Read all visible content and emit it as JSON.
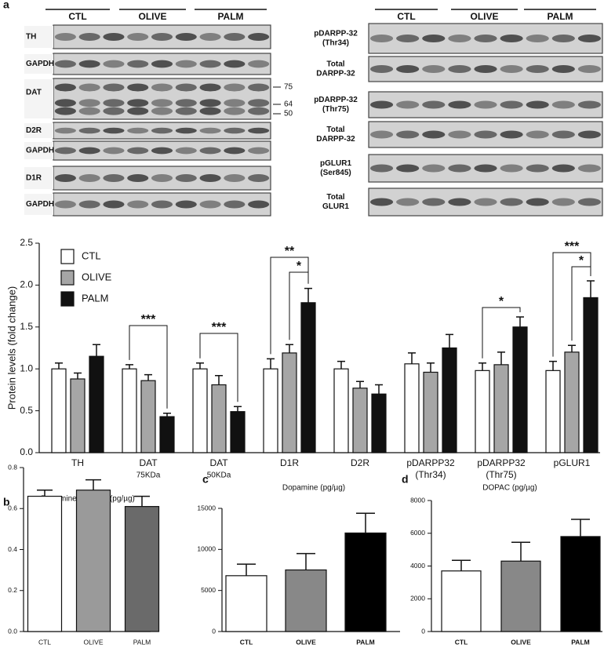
{
  "panel_labels": [
    "a",
    "b",
    "c",
    "d"
  ],
  "blots": {
    "left": {
      "groups": [
        "CTL",
        "OLIVE",
        "PALM"
      ],
      "rows": [
        "TH",
        "GAPDH",
        "DAT",
        "D2R",
        "GAPDH",
        "D1R",
        "GAPDH"
      ],
      "markers": [
        "75",
        "64",
        "50"
      ]
    },
    "right": {
      "groups": [
        "CTL",
        "OLIVE",
        "PALM"
      ],
      "rows": [
        [
          "pDARPP-32",
          "(Thr34)"
        ],
        [
          "Total",
          "DARPP-32"
        ],
        [
          "pDARPP-32",
          "(Thr75)"
        ],
        [
          "Total",
          "DARPP-32"
        ],
        [
          "pGLUR1",
          "(Ser845)"
        ],
        [
          "Total",
          "GLUR1"
        ]
      ]
    }
  },
  "chart_data": [
    {
      "type": "bar",
      "y_label": "Protein levels (fold change)",
      "categories": [
        "TH",
        "DAT",
        "DAT",
        "D1R",
        "D2R",
        "pDARPP32",
        "pDARPP32",
        "pGLUR1"
      ],
      "category_sublabels": [
        null,
        "75KDa",
        "50KDa",
        null,
        null,
        "(Thr34)",
        "(Thr75)",
        null
      ],
      "series": [
        {
          "name": "CTL",
          "color": "#ffffff",
          "values": [
            1.0,
            1.0,
            1.0,
            1.0,
            1.0,
            1.06,
            0.98,
            0.98
          ],
          "errors": [
            0.07,
            0.05,
            0.07,
            0.12,
            0.09,
            0.13,
            0.09,
            0.11
          ]
        },
        {
          "name": "OLIVE",
          "color": "#a6a6a6",
          "values": [
            0.88,
            0.86,
            0.81,
            1.19,
            0.77,
            0.96,
            1.05,
            1.2
          ],
          "errors": [
            0.07,
            0.07,
            0.11,
            0.1,
            0.08,
            0.11,
            0.15,
            0.08
          ]
        },
        {
          "name": "PALM",
          "color": "#111111",
          "values": [
            1.15,
            0.43,
            0.49,
            1.79,
            0.7,
            1.25,
            1.5,
            1.85
          ],
          "errors": [
            0.14,
            0.04,
            0.06,
            0.17,
            0.11,
            0.16,
            0.12,
            0.2
          ]
        }
      ],
      "ylim": [
        0,
        2.5
      ],
      "yticks": [
        {
          "value": 0,
          "label": "0.0"
        },
        {
          "value": 0.5,
          "label": "0.5"
        },
        {
          "value": 1,
          "label": "1.0"
        },
        {
          "value": 1.5,
          "label": "1.5"
        },
        {
          "value": 2,
          "label": "2.0"
        },
        {
          "value": 2.5,
          "label": "2.5"
        }
      ],
      "legend": "top-left",
      "annotations": [
        "***",
        "***",
        "**",
        "*",
        "*",
        "***",
        "*"
      ]
    },
    {
      "type": "bar",
      "title": "Dopamine turnover (pg/µg)",
      "categories": [
        "CTL",
        "OLIVE",
        "PALM"
      ],
      "values": [
        0.66,
        0.69,
        0.61
      ],
      "errors": [
        0.03,
        0.05,
        0.05
      ],
      "colors": [
        "#ffffff",
        "#9a9a9a",
        "#6a6a6a"
      ],
      "ylim": [
        0,
        0.8
      ],
      "yticks": [
        {
          "value": 0,
          "label": "0.0"
        },
        {
          "value": 0.2,
          "label": "0.2"
        },
        {
          "value": 0.4,
          "label": "0.4"
        },
        {
          "value": 0.6,
          "label": "0.6"
        },
        {
          "value": 0.8,
          "label": "0.8"
        }
      ]
    },
    {
      "type": "bar",
      "title": "Dopamine (pg/µg)",
      "categories": [
        "CTL",
        "OLIVE",
        "PALM"
      ],
      "values": [
        6800,
        7500,
        12000
      ],
      "errors": [
        1400,
        2000,
        2400
      ],
      "colors": [
        "#ffffff",
        "#888888",
        "#000000"
      ],
      "ylim": [
        0,
        15000
      ],
      "yticks": [
        0,
        5000,
        10000,
        15000
      ]
    },
    {
      "type": "bar",
      "title": "DOPAC (pg/µg)",
      "categories": [
        "CTL",
        "OLIVE",
        "PALM"
      ],
      "values": [
        3700,
        4300,
        5800
      ],
      "errors": [
        650,
        1150,
        1050
      ],
      "colors": [
        "#ffffff",
        "#888888",
        "#000000"
      ],
      "ylim": [
        0,
        8000
      ],
      "yticks": [
        0,
        2000,
        4000,
        6000,
        8000
      ]
    }
  ]
}
